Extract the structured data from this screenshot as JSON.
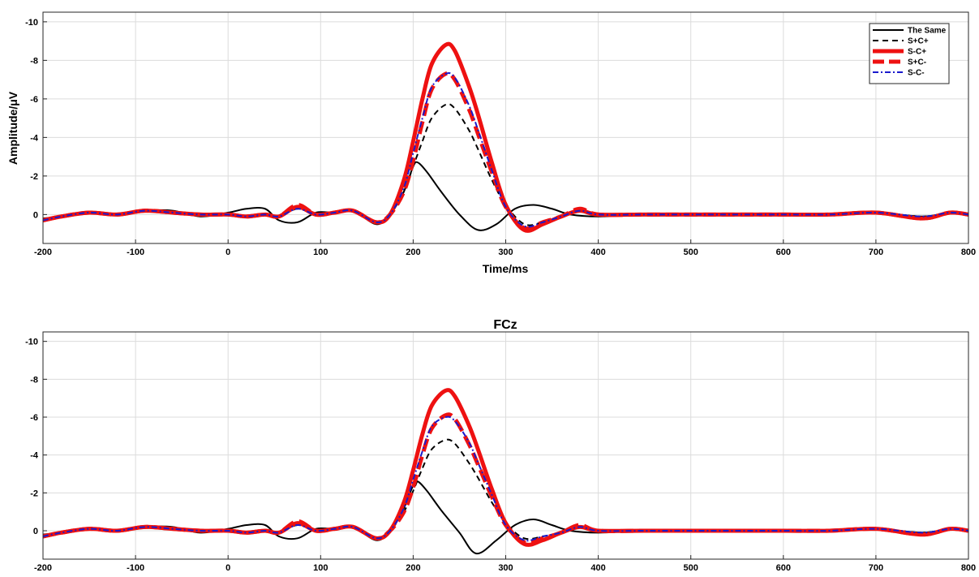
{
  "chart_data": [
    {
      "type": "line",
      "title": "",
      "xlabel": "Time/ms",
      "ylabel": "Amplitude/μV",
      "xlim": [
        -200,
        800
      ],
      "ylim": [
        1.5,
        -10.5
      ],
      "y_reversed": true,
      "grid": true,
      "legend_position": "top-right",
      "x_ticks": [
        "-200",
        "-100",
        "0",
        "100",
        "200",
        "300",
        "400",
        "500",
        "600",
        "700",
        "800"
      ],
      "y_ticks": [
        "-10",
        "-8",
        "-6",
        "-4",
        "-2",
        "0"
      ],
      "x_tick_values": [
        -200,
        -100,
        0,
        100,
        200,
        300,
        400,
        500,
        600,
        700,
        800
      ],
      "y_tick_values": [
        -10,
        -8,
        -6,
        -4,
        -2,
        0
      ],
      "series": [
        {
          "name": "The Same",
          "color": "#000000",
          "style": "solid",
          "width": 2,
          "x": [
            -200,
            -180,
            -150,
            -120,
            -90,
            -60,
            -30,
            0,
            20,
            40,
            55,
            75,
            95,
            115,
            135,
            160,
            175,
            190,
            200,
            205,
            215,
            230,
            250,
            270,
            290,
            310,
            330,
            350,
            370,
            400,
            450,
            500,
            550,
            600,
            650,
            700,
            750,
            780,
            800
          ],
          "y": [
            0.2,
            0.1,
            -0.1,
            0,
            -0.2,
            -0.2,
            0.1,
            -0.1,
            -0.3,
            -0.3,
            0.3,
            0.4,
            -0.1,
            -0.1,
            -0.2,
            0.5,
            0,
            -1.2,
            -2.5,
            -2.7,
            -2.2,
            -1.2,
            0,
            0.8,
            0.5,
            -0.3,
            -0.5,
            -0.3,
            0,
            0.1,
            0,
            0,
            0,
            0,
            0,
            -0.1,
            0.1,
            -0.1,
            0
          ]
        },
        {
          "name": "S+C+",
          "color": "#000000",
          "style": "dashed",
          "width": 2,
          "x": [
            -200,
            -180,
            -150,
            -120,
            -90,
            -60,
            -30,
            0,
            20,
            40,
            55,
            75,
            95,
            115,
            135,
            160,
            175,
            190,
            200,
            210,
            220,
            235,
            245,
            260,
            270,
            285,
            300,
            320,
            340,
            360,
            380,
            400,
            450,
            500,
            550,
            600,
            650,
            700,
            750,
            780,
            800
          ],
          "y": [
            0.3,
            0.1,
            -0.1,
            0,
            -0.2,
            -0.1,
            0,
            0,
            0.1,
            0,
            0.1,
            -0.3,
            0,
            -0.1,
            -0.2,
            0.4,
            0,
            -1.2,
            -2.5,
            -3.8,
            -5,
            -5.7,
            -5.5,
            -4.4,
            -3.4,
            -1.8,
            -0.5,
            0.5,
            0.4,
            0.1,
            -0.2,
            0,
            0,
            0,
            0,
            0,
            0,
            -0.1,
            0.1,
            -0.1,
            0
          ]
        },
        {
          "name": "S-C+",
          "color": "#ee1111",
          "style": "solid",
          "width": 5,
          "x": [
            -200,
            -180,
            -150,
            -120,
            -90,
            -60,
            -30,
            0,
            20,
            40,
            55,
            75,
            95,
            115,
            135,
            160,
            175,
            190,
            200,
            210,
            220,
            235,
            245,
            260,
            270,
            285,
            300,
            320,
            340,
            360,
            380,
            400,
            450,
            500,
            550,
            600,
            650,
            700,
            750,
            780,
            800
          ],
          "y": [
            0.3,
            0.1,
            -0.1,
            0,
            -0.2,
            -0.1,
            0,
            0,
            0.1,
            0,
            0.1,
            -0.4,
            0,
            -0.1,
            -0.2,
            0.4,
            0,
            -1.8,
            -3.8,
            -6,
            -7.8,
            -8.8,
            -8.5,
            -6.7,
            -5.2,
            -2.7,
            -0.5,
            0.8,
            0.5,
            0.1,
            -0.2,
            0,
            0,
            0,
            0,
            0,
            0,
            -0.1,
            0.2,
            -0.1,
            0
          ]
        },
        {
          "name": "S+C-",
          "color": "#ee1111",
          "style": "dashed",
          "width": 5,
          "x": [
            -200,
            -180,
            -150,
            -120,
            -90,
            -60,
            -30,
            0,
            20,
            40,
            55,
            75,
            95,
            115,
            135,
            160,
            175,
            190,
            200,
            210,
            220,
            235,
            245,
            260,
            270,
            285,
            300,
            320,
            340,
            360,
            380,
            400,
            450,
            500,
            550,
            600,
            650,
            700,
            750,
            780,
            800
          ],
          "y": [
            0.3,
            0.1,
            -0.1,
            0,
            -0.2,
            -0.1,
            0,
            0,
            0.1,
            0,
            0.1,
            -0.5,
            0,
            -0.1,
            -0.2,
            0.4,
            0,
            -1.2,
            -2.8,
            -4.8,
            -6.5,
            -7.3,
            -7,
            -5.5,
            -4.2,
            -2.2,
            -0.4,
            0.7,
            0.4,
            0.1,
            -0.3,
            0,
            0,
            0,
            0,
            0,
            0,
            -0.1,
            0.2,
            -0.1,
            0
          ]
        },
        {
          "name": "S-C-",
          "color": "#1a1acc",
          "style": "dashdot",
          "width": 2,
          "x": [
            -200,
            -180,
            -150,
            -120,
            -90,
            -60,
            -30,
            0,
            20,
            40,
            55,
            75,
            95,
            115,
            135,
            160,
            175,
            190,
            200,
            210,
            220,
            235,
            245,
            260,
            270,
            285,
            300,
            320,
            340,
            360,
            380,
            400,
            450,
            500,
            550,
            600,
            650,
            700,
            750,
            780,
            800
          ],
          "y": [
            0.3,
            0.1,
            -0.1,
            0,
            -0.2,
            -0.1,
            0,
            0,
            0.1,
            0,
            0.1,
            -0.3,
            0,
            -0.1,
            -0.2,
            0.4,
            0,
            -1.4,
            -3.2,
            -5,
            -6.6,
            -7.3,
            -7.1,
            -5.7,
            -4.4,
            -2.3,
            -0.4,
            0.6,
            0.4,
            0.1,
            -0.2,
            0,
            0,
            0,
            0,
            0,
            0,
            -0.1,
            0.1,
            -0.1,
            0
          ]
        }
      ]
    },
    {
      "type": "line",
      "title": "FCz",
      "xlabel": "",
      "ylabel": "",
      "xlim": [
        -200,
        800
      ],
      "ylim": [
        1.5,
        -10.5
      ],
      "y_reversed": true,
      "grid": true,
      "x_ticks": [
        "-200",
        "-100",
        "0",
        "100",
        "200",
        "300",
        "400",
        "500",
        "600",
        "700",
        "800"
      ],
      "y_ticks": [
        "-10",
        "-8",
        "-6",
        "-4",
        "-2",
        "0"
      ],
      "x_tick_values": [
        -200,
        -100,
        0,
        100,
        200,
        300,
        400,
        500,
        600,
        700,
        800
      ],
      "y_tick_values": [
        -10,
        -8,
        -6,
        -4,
        -2,
        0
      ],
      "series": [
        {
          "color": "#000000",
          "style": "solid",
          "width": 2,
          "x": [
            -200,
            -180,
            -150,
            -120,
            -90,
            -60,
            -30,
            0,
            20,
            40,
            55,
            75,
            95,
            115,
            135,
            160,
            175,
            190,
            200,
            205,
            215,
            230,
            250,
            268,
            290,
            310,
            330,
            350,
            370,
            400,
            450,
            500,
            550,
            600,
            650,
            700,
            750,
            780,
            800
          ],
          "y": [
            0.2,
            0.1,
            -0.1,
            0,
            -0.2,
            -0.2,
            0.1,
            -0.1,
            -0.3,
            -0.3,
            0.3,
            0.4,
            -0.1,
            -0.1,
            -0.2,
            0.5,
            0,
            -1.2,
            -2.4,
            -2.6,
            -2.1,
            -1.1,
            0.1,
            1.2,
            0.5,
            -0.3,
            -0.6,
            -0.3,
            0,
            0.1,
            0,
            0,
            0,
            0,
            0,
            -0.1,
            0.1,
            -0.1,
            0
          ]
        },
        {
          "color": "#000000",
          "style": "dashed",
          "width": 2,
          "x": [
            -200,
            -180,
            -150,
            -120,
            -90,
            -60,
            -30,
            0,
            20,
            40,
            55,
            75,
            95,
            115,
            135,
            160,
            175,
            190,
            200,
            210,
            220,
            235,
            245,
            260,
            270,
            285,
            300,
            320,
            340,
            360,
            380,
            400,
            450,
            500,
            550,
            600,
            650,
            700,
            750,
            780,
            800
          ],
          "y": [
            0.3,
            0.1,
            -0.1,
            0,
            -0.2,
            -0.1,
            0,
            0,
            0.1,
            0,
            0.1,
            -0.3,
            0,
            -0.1,
            -0.2,
            0.4,
            0,
            -1,
            -2.1,
            -3.3,
            -4.3,
            -4.8,
            -4.6,
            -3.6,
            -2.8,
            -1.5,
            -0.4,
            0.4,
            0.3,
            0.1,
            -0.2,
            0,
            0,
            0,
            0,
            0,
            0,
            -0.1,
            0.1,
            -0.1,
            0
          ]
        },
        {
          "color": "#ee1111",
          "style": "solid",
          "width": 5,
          "x": [
            -200,
            -180,
            -150,
            -120,
            -90,
            -60,
            -30,
            0,
            20,
            40,
            55,
            75,
            95,
            115,
            135,
            160,
            175,
            190,
            200,
            210,
            220,
            235,
            245,
            260,
            270,
            285,
            300,
            320,
            340,
            360,
            380,
            400,
            450,
            500,
            550,
            600,
            650,
            700,
            750,
            780,
            800
          ],
          "y": [
            0.3,
            0.1,
            -0.1,
            0,
            -0.2,
            -0.1,
            0,
            0,
            0.1,
            0,
            0.1,
            -0.4,
            0,
            -0.1,
            -0.2,
            0.4,
            0,
            -1.5,
            -3.2,
            -5.1,
            -6.6,
            -7.4,
            -7.1,
            -5.6,
            -4.3,
            -2.2,
            -0.4,
            0.7,
            0.5,
            0.1,
            -0.2,
            0,
            0,
            0,
            0,
            0,
            0,
            -0.1,
            0.2,
            -0.1,
            0
          ]
        },
        {
          "color": "#ee1111",
          "style": "dashed",
          "width": 5,
          "x": [
            -200,
            -180,
            -150,
            -120,
            -90,
            -60,
            -30,
            0,
            20,
            40,
            55,
            75,
            95,
            115,
            135,
            160,
            175,
            190,
            200,
            210,
            220,
            235,
            245,
            260,
            270,
            285,
            300,
            320,
            340,
            360,
            380,
            400,
            450,
            500,
            550,
            600,
            650,
            700,
            750,
            780,
            800
          ],
          "y": [
            0.3,
            0.1,
            -0.1,
            0,
            -0.2,
            -0.1,
            0,
            0,
            0.1,
            0,
            0.1,
            -0.5,
            0,
            -0.1,
            -0.2,
            0.4,
            0,
            -1,
            -2.3,
            -4,
            -5.4,
            -6.1,
            -5.9,
            -4.6,
            -3.5,
            -1.8,
            -0.3,
            0.6,
            0.4,
            0.1,
            -0.3,
            0,
            0,
            0,
            0,
            0,
            0,
            -0.1,
            0.2,
            -0.1,
            0
          ]
        },
        {
          "color": "#1a1acc",
          "style": "dashdot",
          "width": 2,
          "x": [
            -200,
            -180,
            -150,
            -120,
            -90,
            -60,
            -30,
            0,
            20,
            40,
            55,
            75,
            95,
            115,
            135,
            160,
            175,
            190,
            200,
            210,
            220,
            235,
            245,
            260,
            270,
            285,
            300,
            320,
            340,
            360,
            380,
            400,
            450,
            500,
            550,
            600,
            650,
            700,
            750,
            780,
            800
          ],
          "y": [
            0.3,
            0.1,
            -0.1,
            0,
            -0.2,
            -0.1,
            0,
            0,
            0.1,
            0,
            0.1,
            -0.3,
            0,
            -0.1,
            -0.2,
            0.4,
            0,
            -1.2,
            -2.7,
            -4.2,
            -5.5,
            -6,
            -5.8,
            -4.7,
            -3.6,
            -1.9,
            -0.3,
            0.5,
            0.3,
            0.1,
            -0.2,
            0,
            0,
            0,
            0,
            0,
            0,
            -0.1,
            0.1,
            -0.1,
            0
          ]
        }
      ]
    }
  ]
}
